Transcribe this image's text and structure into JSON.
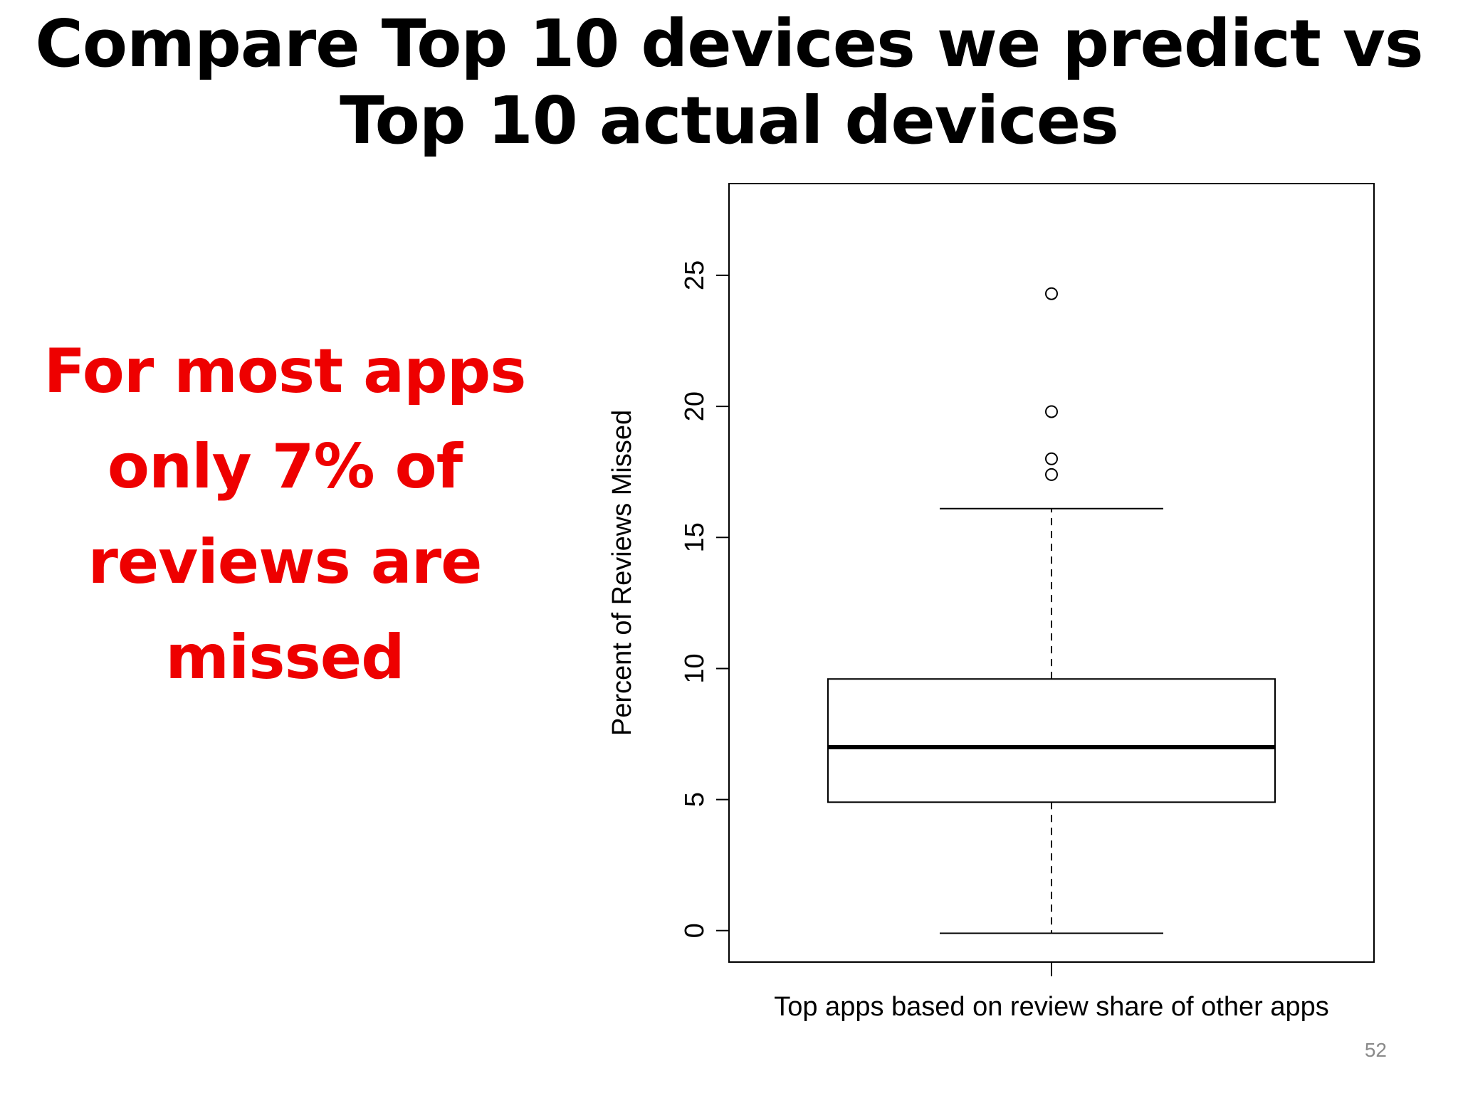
{
  "slide": {
    "title_lines": [
      "Compare Top 10 devices we predict vs",
      "Top 10 actual devices"
    ],
    "callout_lines": [
      "For most apps",
      "only 7% of",
      "reviews are",
      "missed"
    ],
    "page_number": "52"
  },
  "colors": {
    "callout": "#ee0000",
    "title": "#000000",
    "page_number": "#8a8a8a"
  },
  "chart_data": {
    "type": "boxplot",
    "title": "",
    "xlabel": "Top apps based on review share of other apps",
    "ylabel": "Percent of Reviews Missed",
    "ylim": [
      -1.2,
      28.5
    ],
    "y_ticks": [
      0,
      5,
      10,
      15,
      20,
      25
    ],
    "y_tick_labels": [
      "0",
      "5",
      "10",
      "15",
      "20",
      "25"
    ],
    "grid": false,
    "box": {
      "whisker_low": -0.1,
      "q1": 4.9,
      "median": 7.0,
      "q3": 9.6,
      "whisker_high": 16.1,
      "outliers": [
        24.3,
        19.8,
        18.0,
        17.4
      ]
    }
  }
}
